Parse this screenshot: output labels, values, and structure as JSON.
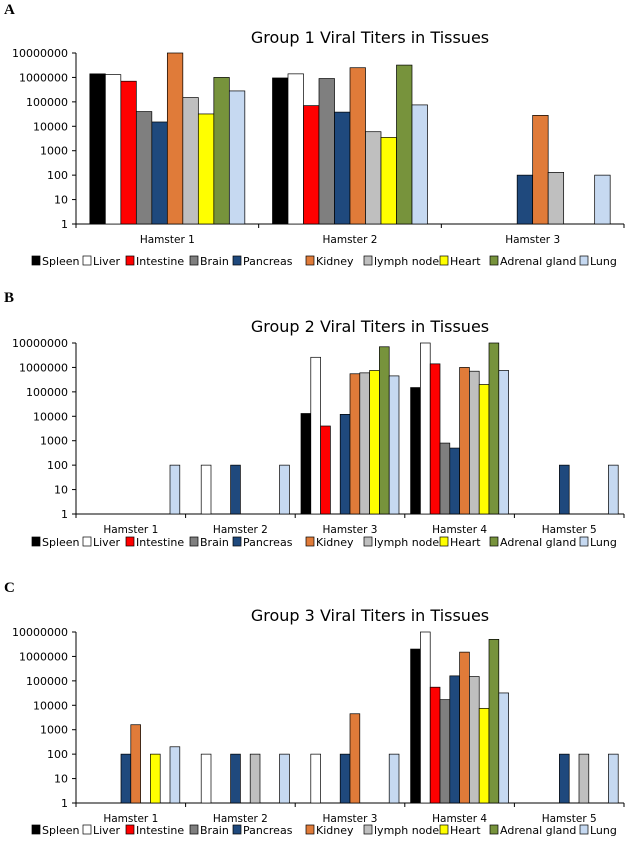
{
  "legend": [
    "Spleen",
    "Liver",
    "Intestine",
    "Brain",
    "Pancreas",
    "Kidney",
    "lymph node",
    "Heart",
    "Adrenal gland",
    "Lung"
  ],
  "colors": [
    "#000000",
    "#ffffff",
    "#ff0000",
    "#7f7f7f",
    "#1f497d",
    "#e07b39",
    "#bfbfbf",
    "#ffff00",
    "#77933c",
    "#c6d9f1"
  ],
  "y_tick_labels": [
    "1",
    "10",
    "100",
    "1000",
    "10000",
    "100000",
    "1000000",
    "10000000"
  ],
  "chart_data": [
    {
      "panel": "A",
      "type": "bar",
      "title": "Group 1 Viral Titers in Tissues",
      "xlabel": "",
      "ylabel": "",
      "yscale": "log",
      "ylim": [
        1,
        10000000
      ],
      "categories": [
        "Hamster 1",
        "Hamster 2",
        "Hamster 3"
      ],
      "series": [
        {
          "name": "Spleen",
          "values": [
            1400000,
            950000,
            null
          ]
        },
        {
          "name": "Liver",
          "values": [
            1300000,
            1400000,
            null
          ]
        },
        {
          "name": "Intestine",
          "values": [
            700000,
            70000,
            null
          ]
        },
        {
          "name": "Brain",
          "values": [
            40000,
            900000,
            null
          ]
        },
        {
          "name": "Pancreas",
          "values": [
            15000,
            38000,
            100
          ]
        },
        {
          "name": "Kidney",
          "values": [
            10000000,
            2500000,
            28000
          ]
        },
        {
          "name": "lymph node",
          "values": [
            150000,
            6000,
            130
          ]
        },
        {
          "name": "Heart",
          "values": [
            32000,
            3500,
            null
          ]
        },
        {
          "name": "Adrenal gland",
          "values": [
            1000000,
            3200000,
            null
          ]
        },
        {
          "name": "Lung",
          "values": [
            280000,
            75000,
            100
          ]
        }
      ]
    },
    {
      "panel": "B",
      "type": "bar",
      "title": "Group 2 Viral Titers in Tissues",
      "xlabel": "",
      "ylabel": "",
      "yscale": "log",
      "ylim": [
        1,
        10000000
      ],
      "categories": [
        "Hamster 1",
        "Hamster 2",
        "Hamster 3",
        "Hamster 4",
        "Hamster 5"
      ],
      "series": [
        {
          "name": "Spleen",
          "values": [
            null,
            null,
            13000,
            150000,
            null
          ]
        },
        {
          "name": "Liver",
          "values": [
            null,
            100,
            2600000,
            10000000,
            null
          ]
        },
        {
          "name": "Intestine",
          "values": [
            null,
            null,
            4000,
            1400000,
            null
          ]
        },
        {
          "name": "Brain",
          "values": [
            null,
            null,
            null,
            800,
            null
          ]
        },
        {
          "name": "Pancreas",
          "values": [
            null,
            100,
            12000,
            500,
            100
          ]
        },
        {
          "name": "Kidney",
          "values": [
            null,
            null,
            550000,
            1000000,
            null
          ]
        },
        {
          "name": "lymph node",
          "values": [
            null,
            null,
            600000,
            700000,
            null
          ]
        },
        {
          "name": "Heart",
          "values": [
            null,
            null,
            750000,
            200000,
            null
          ]
        },
        {
          "name": "Adrenal gland",
          "values": [
            null,
            null,
            7000000,
            10000000,
            null
          ]
        },
        {
          "name": "Lung",
          "values": [
            100,
            100,
            450000,
            750000,
            100
          ]
        }
      ]
    },
    {
      "panel": "C",
      "type": "bar",
      "title": "Group 3 Viral Titers in Tissues",
      "xlabel": "",
      "ylabel": "",
      "yscale": "log",
      "ylim": [
        1,
        10000000
      ],
      "categories": [
        "Hamster 1",
        "Hamster 2",
        "Hamster 3",
        "Hamster 4",
        "Hamster 5"
      ],
      "series": [
        {
          "name": "Spleen",
          "values": [
            null,
            null,
            null,
            2000000,
            null
          ]
        },
        {
          "name": "Liver",
          "values": [
            null,
            100,
            100,
            10000000,
            null
          ]
        },
        {
          "name": "Intestine",
          "values": [
            null,
            null,
            null,
            55000,
            null
          ]
        },
        {
          "name": "Brain",
          "values": [
            null,
            null,
            null,
            17000,
            null
          ]
        },
        {
          "name": "Pancreas",
          "values": [
            100,
            100,
            100,
            160000,
            100
          ]
        },
        {
          "name": "Kidney",
          "values": [
            1600,
            null,
            4500,
            1500000,
            null
          ]
        },
        {
          "name": "lymph node",
          "values": [
            null,
            100,
            null,
            150000,
            100
          ]
        },
        {
          "name": "Heart",
          "values": [
            100,
            null,
            null,
            7500,
            null
          ]
        },
        {
          "name": "Adrenal gland",
          "values": [
            null,
            null,
            null,
            5000000,
            null
          ]
        },
        {
          "name": "Lung",
          "values": [
            200,
            100,
            100,
            32000,
            100
          ]
        }
      ]
    }
  ]
}
